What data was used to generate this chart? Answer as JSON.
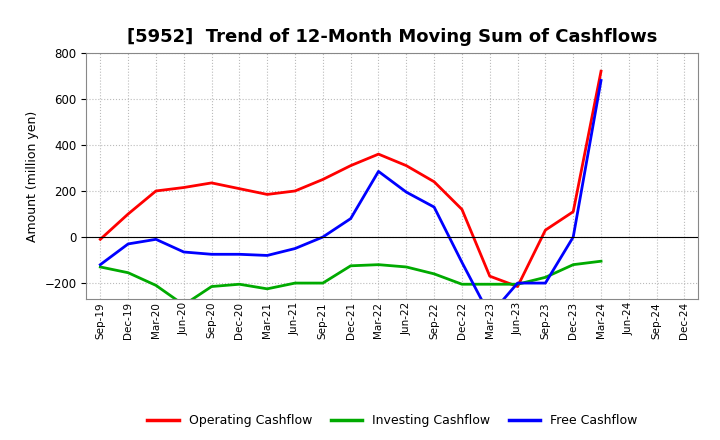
{
  "title": "[5952]  Trend of 12-Month Moving Sum of Cashflows",
  "ylabel": "Amount (million yen)",
  "x_labels": [
    "Sep-19",
    "Dec-19",
    "Mar-20",
    "Jun-20",
    "Sep-20",
    "Dec-20",
    "Mar-21",
    "Jun-21",
    "Sep-21",
    "Dec-21",
    "Mar-22",
    "Jun-22",
    "Sep-22",
    "Dec-22",
    "Mar-23",
    "Jun-23",
    "Sep-23",
    "Dec-23",
    "Mar-24",
    "Jun-24",
    "Sep-24",
    "Dec-24"
  ],
  "operating_cashflow": [
    -10,
    100,
    200,
    215,
    235,
    210,
    185,
    200,
    250,
    310,
    360,
    310,
    240,
    120,
    -170,
    -215,
    30,
    110,
    720,
    null,
    null,
    null
  ],
  "investing_cashflow": [
    -130,
    -155,
    -210,
    -295,
    -215,
    -205,
    -225,
    -200,
    -200,
    -125,
    -120,
    -130,
    -160,
    -205,
    -205,
    -205,
    -175,
    -120,
    -105,
    null,
    null,
    null
  ],
  "free_cashflow": [
    -120,
    -30,
    -10,
    -65,
    -75,
    -75,
    -80,
    -50,
    0,
    80,
    285,
    195,
    130,
    -110,
    -340,
    -200,
    -200,
    0,
    680,
    null,
    null,
    null
  ],
  "ylim": [
    -270,
    800
  ],
  "yticks": [
    -200,
    0,
    200,
    400,
    600,
    800
  ],
  "operating_color": "#ff0000",
  "investing_color": "#00aa00",
  "free_color": "#0000ff",
  "bg_color": "#ffffff",
  "plot_bg_color": "#ffffff",
  "grid_color": "#bbbbbb",
  "linewidth": 2.0,
  "title_fontsize": 13,
  "legend_labels": [
    "Operating Cashflow",
    "Investing Cashflow",
    "Free Cashflow"
  ]
}
